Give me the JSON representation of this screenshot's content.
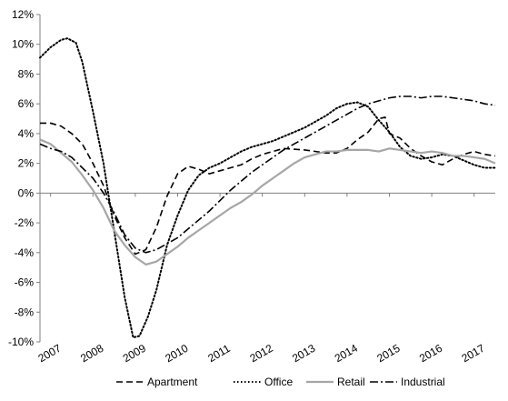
{
  "chart_data": {
    "type": "line",
    "title": "",
    "xlabel": "",
    "ylabel": "",
    "ylim": [
      -10,
      12
    ],
    "y_ticks": [
      -10,
      -8,
      -6,
      -4,
      -2,
      0,
      2,
      4,
      6,
      8,
      10,
      12
    ],
    "y_tick_labels": [
      "-10%",
      "-8%",
      "-6%",
      "-4%",
      "-2%",
      "0%",
      "2%",
      "4%",
      "6%",
      "8%",
      "10%",
      "12%"
    ],
    "xlim": [
      2006.75,
      2017.5
    ],
    "x_tick_labels": [
      "2007",
      "2008",
      "2009",
      "2010",
      "2011",
      "2012",
      "2013",
      "2014",
      "2015",
      "2016",
      "2017"
    ],
    "grid": false,
    "legend": {
      "placement": "bottom",
      "entries": [
        "Apartment",
        "Office",
        "Retail",
        "Industrial"
      ]
    },
    "series": [
      {
        "name": "Apartment",
        "style": "dashed",
        "color": "#000000",
        "points": [
          [
            2006.75,
            4.7
          ],
          [
            2007.0,
            4.7
          ],
          [
            2007.25,
            4.5
          ],
          [
            2007.5,
            4.0
          ],
          [
            2007.75,
            3.3
          ],
          [
            2008.0,
            2.0
          ],
          [
            2008.25,
            0.5
          ],
          [
            2008.5,
            -1.5
          ],
          [
            2008.75,
            -3.0
          ],
          [
            2009.0,
            -4.1
          ],
          [
            2009.25,
            -3.8
          ],
          [
            2009.5,
            -2.3
          ],
          [
            2009.75,
            -0.2
          ],
          [
            2010.0,
            1.3
          ],
          [
            2010.25,
            1.8
          ],
          [
            2010.5,
            1.6
          ],
          [
            2010.75,
            1.3
          ],
          [
            2011.0,
            1.5
          ],
          [
            2011.5,
            1.9
          ],
          [
            2011.75,
            2.3
          ],
          [
            2012.0,
            2.6
          ],
          [
            2012.5,
            3.0
          ],
          [
            2013.0,
            2.9
          ],
          [
            2013.5,
            2.7
          ],
          [
            2013.75,
            2.7
          ],
          [
            2014.0,
            3.0
          ],
          [
            2014.25,
            3.6
          ],
          [
            2014.5,
            4.1
          ],
          [
            2014.75,
            5.0
          ],
          [
            2014.9,
            5.1
          ],
          [
            2015.0,
            4.0
          ],
          [
            2015.25,
            3.7
          ],
          [
            2015.5,
            3.0
          ],
          [
            2015.75,
            2.5
          ],
          [
            2016.0,
            2.1
          ],
          [
            2016.25,
            1.9
          ],
          [
            2016.5,
            2.3
          ],
          [
            2016.75,
            2.6
          ],
          [
            2017.0,
            2.8
          ],
          [
            2017.25,
            2.6
          ],
          [
            2017.5,
            2.5
          ]
        ]
      },
      {
        "name": "Office",
        "style": "dotted",
        "color": "#000000",
        "points": [
          [
            2006.75,
            9.1
          ],
          [
            2007.0,
            9.8
          ],
          [
            2007.25,
            10.3
          ],
          [
            2007.4,
            10.4
          ],
          [
            2007.6,
            10.1
          ],
          [
            2007.75,
            8.8
          ],
          [
            2008.0,
            5.5
          ],
          [
            2008.25,
            2.0
          ],
          [
            2008.5,
            -2.5
          ],
          [
            2008.75,
            -7.0
          ],
          [
            2008.95,
            -9.7
          ],
          [
            2009.1,
            -9.6
          ],
          [
            2009.3,
            -8.3
          ],
          [
            2009.5,
            -6.5
          ],
          [
            2009.75,
            -3.5
          ],
          [
            2010.0,
            -1.5
          ],
          [
            2010.25,
            0.2
          ],
          [
            2010.5,
            1.2
          ],
          [
            2010.75,
            1.7
          ],
          [
            2011.0,
            2.0
          ],
          [
            2011.25,
            2.4
          ],
          [
            2011.5,
            2.8
          ],
          [
            2011.75,
            3.1
          ],
          [
            2012.0,
            3.3
          ],
          [
            2012.25,
            3.5
          ],
          [
            2012.5,
            3.8
          ],
          [
            2012.75,
            4.1
          ],
          [
            2013.0,
            4.4
          ],
          [
            2013.25,
            4.8
          ],
          [
            2013.5,
            5.2
          ],
          [
            2013.75,
            5.7
          ],
          [
            2014.0,
            6.0
          ],
          [
            2014.25,
            6.1
          ],
          [
            2014.5,
            5.8
          ],
          [
            2014.75,
            4.9
          ],
          [
            2015.0,
            4.1
          ],
          [
            2015.25,
            3.1
          ],
          [
            2015.5,
            2.5
          ],
          [
            2015.75,
            2.3
          ],
          [
            2016.0,
            2.4
          ],
          [
            2016.25,
            2.6
          ],
          [
            2016.5,
            2.5
          ],
          [
            2016.75,
            2.2
          ],
          [
            2017.0,
            1.9
          ],
          [
            2017.25,
            1.7
          ],
          [
            2017.5,
            1.7
          ]
        ]
      },
      {
        "name": "Retail",
        "style": "solid",
        "color": "#a6a6a6",
        "points": [
          [
            2006.75,
            3.6
          ],
          [
            2007.0,
            3.3
          ],
          [
            2007.25,
            2.7
          ],
          [
            2007.5,
            2.1
          ],
          [
            2007.75,
            1.2
          ],
          [
            2008.0,
            0.2
          ],
          [
            2008.25,
            -1.0
          ],
          [
            2008.5,
            -2.5
          ],
          [
            2008.75,
            -3.5
          ],
          [
            2009.0,
            -4.3
          ],
          [
            2009.25,
            -4.8
          ],
          [
            2009.5,
            -4.6
          ],
          [
            2009.75,
            -4.1
          ],
          [
            2010.0,
            -3.6
          ],
          [
            2010.25,
            -3.0
          ],
          [
            2010.5,
            -2.5
          ],
          [
            2010.75,
            -2.0
          ],
          [
            2011.0,
            -1.5
          ],
          [
            2011.25,
            -1.0
          ],
          [
            2011.5,
            -0.6
          ],
          [
            2011.75,
            -0.1
          ],
          [
            2012.0,
            0.5
          ],
          [
            2012.25,
            1.0
          ],
          [
            2012.5,
            1.5
          ],
          [
            2012.75,
            2.0
          ],
          [
            2013.0,
            2.4
          ],
          [
            2013.25,
            2.6
          ],
          [
            2013.5,
            2.8
          ],
          [
            2013.75,
            2.8
          ],
          [
            2014.0,
            2.9
          ],
          [
            2014.25,
            2.9
          ],
          [
            2014.5,
            2.9
          ],
          [
            2014.75,
            2.8
          ],
          [
            2015.0,
            3.0
          ],
          [
            2015.25,
            2.9
          ],
          [
            2015.5,
            2.8
          ],
          [
            2015.75,
            2.7
          ],
          [
            2016.0,
            2.8
          ],
          [
            2016.25,
            2.7
          ],
          [
            2016.5,
            2.5
          ],
          [
            2016.75,
            2.5
          ],
          [
            2017.0,
            2.4
          ],
          [
            2017.25,
            2.3
          ],
          [
            2017.5,
            2.0
          ]
        ]
      },
      {
        "name": "Industrial",
        "style": "dash-dot",
        "color": "#000000",
        "points": [
          [
            2006.75,
            3.3
          ],
          [
            2007.0,
            3.0
          ],
          [
            2007.25,
            2.8
          ],
          [
            2007.5,
            2.4
          ],
          [
            2007.75,
            1.7
          ],
          [
            2008.0,
            1.0
          ],
          [
            2008.25,
            0.0
          ],
          [
            2008.5,
            -1.3
          ],
          [
            2008.75,
            -2.8
          ],
          [
            2009.0,
            -3.7
          ],
          [
            2009.25,
            -4.0
          ],
          [
            2009.5,
            -3.8
          ],
          [
            2009.75,
            -3.4
          ],
          [
            2010.0,
            -3.0
          ],
          [
            2010.25,
            -2.4
          ],
          [
            2010.5,
            -1.8
          ],
          [
            2010.75,
            -1.2
          ],
          [
            2011.0,
            -0.5
          ],
          [
            2011.25,
            0.2
          ],
          [
            2011.5,
            0.8
          ],
          [
            2011.75,
            1.4
          ],
          [
            2012.0,
            1.9
          ],
          [
            2012.25,
            2.4
          ],
          [
            2012.5,
            2.9
          ],
          [
            2012.75,
            3.3
          ],
          [
            2013.0,
            3.7
          ],
          [
            2013.25,
            4.1
          ],
          [
            2013.5,
            4.5
          ],
          [
            2013.75,
            4.9
          ],
          [
            2014.0,
            5.3
          ],
          [
            2014.25,
            5.7
          ],
          [
            2014.5,
            6.0
          ],
          [
            2014.75,
            6.2
          ],
          [
            2015.0,
            6.4
          ],
          [
            2015.25,
            6.5
          ],
          [
            2015.5,
            6.5
          ],
          [
            2015.75,
            6.4
          ],
          [
            2016.0,
            6.5
          ],
          [
            2016.25,
            6.5
          ],
          [
            2016.5,
            6.4
          ],
          [
            2016.75,
            6.3
          ],
          [
            2017.0,
            6.2
          ],
          [
            2017.25,
            6.0
          ],
          [
            2017.5,
            5.9
          ]
        ]
      }
    ]
  }
}
